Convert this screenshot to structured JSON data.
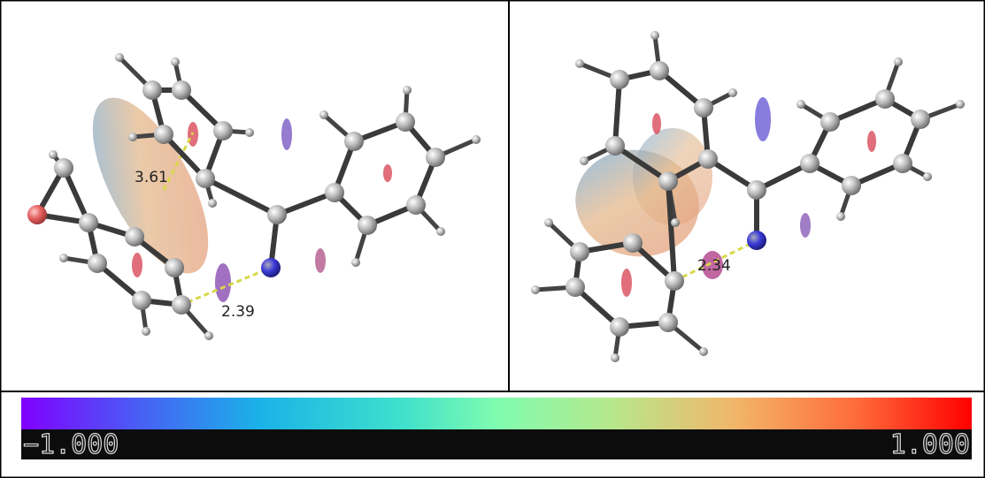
{
  "left_panel": {
    "distances": [
      "3.61",
      "2.39"
    ]
  },
  "right_panel": {
    "distances": [
      "2.34"
    ]
  },
  "colorbar": {
    "min_label": "−1.000",
    "max_label": "1.000"
  }
}
